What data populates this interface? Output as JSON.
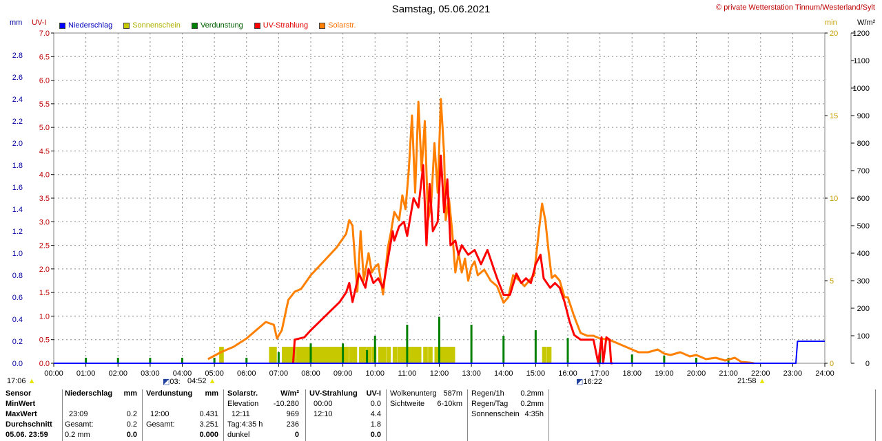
{
  "header": {
    "title": "Samstag, 05.06.2021",
    "credit": "© private Wetterstation Tinnum/Westerland/Sylt"
  },
  "units": {
    "mm": "mm",
    "uvi": "UV-I",
    "min": "min",
    "wm2": "W/m²"
  },
  "legend": [
    {
      "label": "Niederschlag",
      "color": "#0000ff"
    },
    {
      "label": "Sonnenschein",
      "color": "#c8c800"
    },
    {
      "label": "Verdunstung",
      "color": "#008000"
    },
    {
      "label": "UV-Strahlung",
      "color": "#ff0000"
    },
    {
      "label": "Solarstr.",
      "color": "#ff8000"
    }
  ],
  "below_axis": {
    "sunrise_min": "17:06",
    "moonrise": "03:",
    "sunrise": "04:52",
    "sunset_marker": "16:22",
    "sunset": "21:58"
  },
  "chart_data": {
    "type": "line",
    "title": "Samstag, 05.06.2021",
    "x_ticks": [
      "00:00",
      "01:00",
      "02:00",
      "03:00",
      "04:00",
      "05:00",
      "06:00",
      "07:00",
      "08:00",
      "09:00",
      "10:00",
      "11:00",
      "12:00",
      "13:00",
      "14:00",
      "15:00",
      "16:00",
      "17:00",
      "18:00",
      "19:00",
      "20:00",
      "21:00",
      "22:00",
      "23:00",
      "24:00"
    ],
    "axes": {
      "mm": {
        "range": [
          0,
          3.0
        ],
        "ticks": [
          "0.0",
          "0.2",
          "0.4",
          "0.6",
          "0.8",
          "1.0",
          "1.2",
          "1.4",
          "1.6",
          "1.8",
          "2.0",
          "2.2",
          "2.4",
          "2.6",
          "2.8"
        ],
        "color": "#0000a0"
      },
      "uvi": {
        "range": [
          0,
          7.0
        ],
        "ticks": [
          "0.0",
          "0.5",
          "1.0",
          "1.5",
          "2.0",
          "2.5",
          "3.0",
          "3.5",
          "4.0",
          "4.5",
          "5.0",
          "5.5",
          "6.0",
          "6.5",
          "7.0"
        ],
        "color": "#c00000"
      },
      "min": {
        "range": [
          0,
          20
        ],
        "ticks": [
          "0",
          "5",
          "10",
          "15",
          "20"
        ],
        "color": "#c8a000"
      },
      "wm2": {
        "range": [
          0,
          1200
        ],
        "ticks": [
          "0",
          "100",
          "200",
          "300",
          "400",
          "500",
          "600",
          "700",
          "800",
          "900",
          "1000",
          "1100",
          "1200"
        ],
        "color": "#000000"
      }
    },
    "grid": true,
    "series": [
      {
        "name": "Solarstr.",
        "axis": "wm2",
        "color": "#ff8000",
        "x": [
          4.8,
          5.2,
          5.6,
          6.0,
          6.3,
          6.6,
          6.85,
          6.95,
          7.1,
          7.3,
          7.5,
          7.7,
          8.0,
          8.4,
          8.8,
          9.1,
          9.2,
          9.3,
          9.45,
          9.55,
          9.65,
          9.8,
          9.9,
          10.0,
          10.1,
          10.25,
          10.4,
          10.5,
          10.6,
          10.75,
          10.85,
          10.95,
          11.05,
          11.15,
          11.25,
          11.35,
          11.45,
          11.55,
          11.65,
          11.75,
          11.85,
          11.95,
          12.05,
          12.15,
          12.2,
          12.3,
          12.4,
          12.5,
          12.6,
          12.7,
          12.8,
          12.9,
          13.0,
          13.1,
          13.2,
          13.4,
          13.6,
          13.8,
          14.0,
          14.15,
          14.3,
          14.5,
          14.65,
          14.8,
          14.95,
          15.1,
          15.2,
          15.3,
          15.4,
          15.5,
          15.6,
          15.75,
          15.9,
          16.0,
          16.2,
          16.4,
          16.6,
          16.8,
          17.0,
          17.3,
          17.6,
          17.9,
          18.2,
          18.5,
          18.8,
          19.0,
          19.2,
          19.5,
          19.8,
          20.0,
          20.3,
          20.6,
          20.9,
          21.2,
          21.4,
          21.6,
          21.8
        ],
        "y": [
          15,
          40,
          60,
          90,
          120,
          150,
          140,
          90,
          120,
          230,
          260,
          270,
          320,
          370,
          420,
          470,
          520,
          500,
          260,
          480,
          300,
          400,
          330,
          350,
          360,
          250,
          420,
          480,
          550,
          520,
          610,
          560,
          700,
          900,
          620,
          950,
          700,
          880,
          520,
          580,
          800,
          620,
          960,
          760,
          520,
          600,
          480,
          330,
          400,
          330,
          380,
          300,
          350,
          370,
          320,
          340,
          300,
          280,
          220,
          240,
          320,
          300,
          280,
          300,
          320,
          480,
          580,
          520,
          410,
          310,
          320,
          300,
          240,
          240,
          170,
          110,
          100,
          100,
          90,
          85,
          70,
          55,
          40,
          40,
          50,
          35,
          30,
          40,
          25,
          30,
          15,
          20,
          10,
          20,
          5,
          3,
          0
        ]
      },
      {
        "name": "UV-Strahlung",
        "axis": "uvi",
        "color": "#ff0000",
        "x": [
          7.45,
          7.5,
          7.8,
          8.0,
          8.3,
          8.6,
          8.9,
          9.1,
          9.2,
          9.3,
          9.5,
          9.7,
          9.8,
          9.95,
          10.1,
          10.25,
          10.4,
          10.55,
          10.6,
          10.75,
          10.9,
          11.0,
          11.1,
          11.2,
          11.35,
          11.5,
          11.6,
          11.7,
          11.8,
          11.95,
          12.05,
          12.15,
          12.25,
          12.35,
          12.5,
          12.6,
          12.7,
          12.9,
          13.1,
          13.3,
          13.5,
          13.8,
          14.0,
          14.2,
          14.4,
          14.55,
          14.7,
          14.85,
          15.0,
          15.15,
          15.25,
          15.35,
          15.45,
          15.6,
          15.75,
          15.9,
          16.05,
          16.2,
          16.4,
          16.6,
          16.8,
          16.95,
          17.05,
          17.1,
          17.2,
          17.3,
          17.35,
          17.4
        ],
        "y": [
          0,
          0.5,
          0.55,
          0.7,
          0.9,
          1.1,
          1.3,
          1.5,
          1.7,
          1.3,
          1.9,
          1.6,
          2.0,
          1.7,
          1.8,
          1.6,
          2.2,
          2.8,
          2.6,
          2.9,
          3.0,
          2.7,
          3.1,
          3.5,
          3.3,
          4.2,
          2.5,
          3.8,
          2.8,
          3.0,
          4.4,
          3.2,
          3.9,
          2.5,
          2.6,
          2.3,
          2.5,
          2.3,
          2.4,
          2.1,
          2.4,
          1.8,
          1.45,
          1.45,
          1.9,
          1.7,
          1.8,
          1.7,
          2.1,
          2.3,
          1.8,
          1.7,
          1.6,
          1.7,
          1.6,
          1.3,
          0.9,
          0.6,
          0.5,
          0.5,
          0.5,
          0.0,
          0.55,
          0.0,
          0.55,
          0.5,
          0.0,
          0.0
        ]
      },
      {
        "name": "Niederschlag",
        "axis": "mm",
        "color": "#0000ff",
        "x": [
          0,
          23.1,
          23.15,
          24
        ],
        "y": [
          0,
          0,
          0.2,
          0.2
        ]
      }
    ],
    "bars": [
      {
        "name": "Sonnenschein",
        "axis": "min",
        "color": "#c8c800",
        "x": [
          5.15,
          6.7,
          6.8,
          7.1,
          7.2,
          7.3,
          7.4,
          7.55,
          7.65,
          7.75,
          7.85,
          7.95,
          8.05,
          8.15,
          8.25,
          8.35,
          8.45,
          8.55,
          8.65,
          8.75,
          8.85,
          8.95,
          9.05,
          9.2,
          9.3,
          9.5,
          9.6,
          9.75,
          9.9,
          10.1,
          10.2,
          10.35,
          10.55,
          10.7,
          10.8,
          10.9,
          11.0,
          11.1,
          11.2,
          11.3,
          11.5,
          11.65,
          11.85,
          11.95,
          12.05,
          12.15,
          12.25,
          12.35,
          15.2,
          15.35
        ],
        "values": [
          1,
          1,
          1,
          1,
          1,
          1,
          1,
          1,
          1,
          1,
          1,
          1,
          1,
          1,
          1,
          1,
          1,
          1,
          1,
          1,
          1,
          1,
          1,
          1,
          1,
          1,
          1,
          1,
          1,
          1,
          1,
          1,
          1,
          1,
          1,
          1,
          1,
          1,
          1,
          1,
          1,
          1,
          1,
          1,
          1,
          1,
          1,
          1,
          1,
          1
        ]
      },
      {
        "name": "Verdunstung",
        "axis": "mm",
        "color": "#008000",
        "x": [
          1.0,
          2.0,
          3.0,
          4.0,
          5.0,
          6.0,
          7.0,
          8.0,
          9.0,
          9.75,
          10.0,
          11.0,
          12.0,
          13.0,
          14.0,
          15.0,
          16.0,
          17.0,
          18.0,
          19.0,
          20.0,
          21.0
        ],
        "values": [
          0.05,
          0.05,
          0.05,
          0.05,
          0.05,
          0.05,
          0.1,
          0.18,
          0.18,
          0.12,
          0.25,
          0.35,
          0.42,
          0.35,
          0.25,
          0.3,
          0.23,
          0.12,
          0.08,
          0.07,
          0.05,
          0.05
        ]
      }
    ]
  },
  "stats": {
    "row_labels": [
      "Sensor",
      "MinWert",
      "MaxWert",
      "Durchschnitt",
      "05.06. 23:59"
    ],
    "niederschlag": {
      "head": "Niederschlag",
      "unit": "mm",
      "max_time": "23:09",
      "max": "0.2",
      "gesamt_label": "Gesamt:",
      "gesamt": "0.2",
      "last_a": "0.2 mm",
      "last_b": "0.0"
    },
    "verdunstung": {
      "head": "Verdunstung",
      "unit": "mm",
      "max_time": "12:00",
      "max": "0.431",
      "gesamt_label": "Gesamt:",
      "gesamt": "3.251",
      "last": "0.000"
    },
    "solar": {
      "head": "Solarstr.",
      "unit": "W/m²",
      "elev_label": "Elevation",
      "elev": "-10.280",
      "max_time": "12:11",
      "max": "969",
      "tag_label": "Tag:4:35 h",
      "tag": "236",
      "dunkel_label": "dunkel",
      "dunkel": "0"
    },
    "uv": {
      "head": "UV-Strahlung",
      "unit": "UV-I",
      "min_time": "00:00",
      "min": "0.0",
      "max_time": "12:10",
      "max": "4.4",
      "avg": "1.8",
      "last": "0.0"
    },
    "wolken": {
      "label1": "Wolkenunterg",
      "value1": "587m",
      "label2": "Sichtweite",
      "value2": "6-10km"
    },
    "regen": {
      "label1": "Regen/1h",
      "value1": "0.2mm",
      "label2": "Regen/Tag",
      "value2": "0.2mm",
      "label3": "Sonnenschein",
      "value3": "4:35h"
    }
  }
}
